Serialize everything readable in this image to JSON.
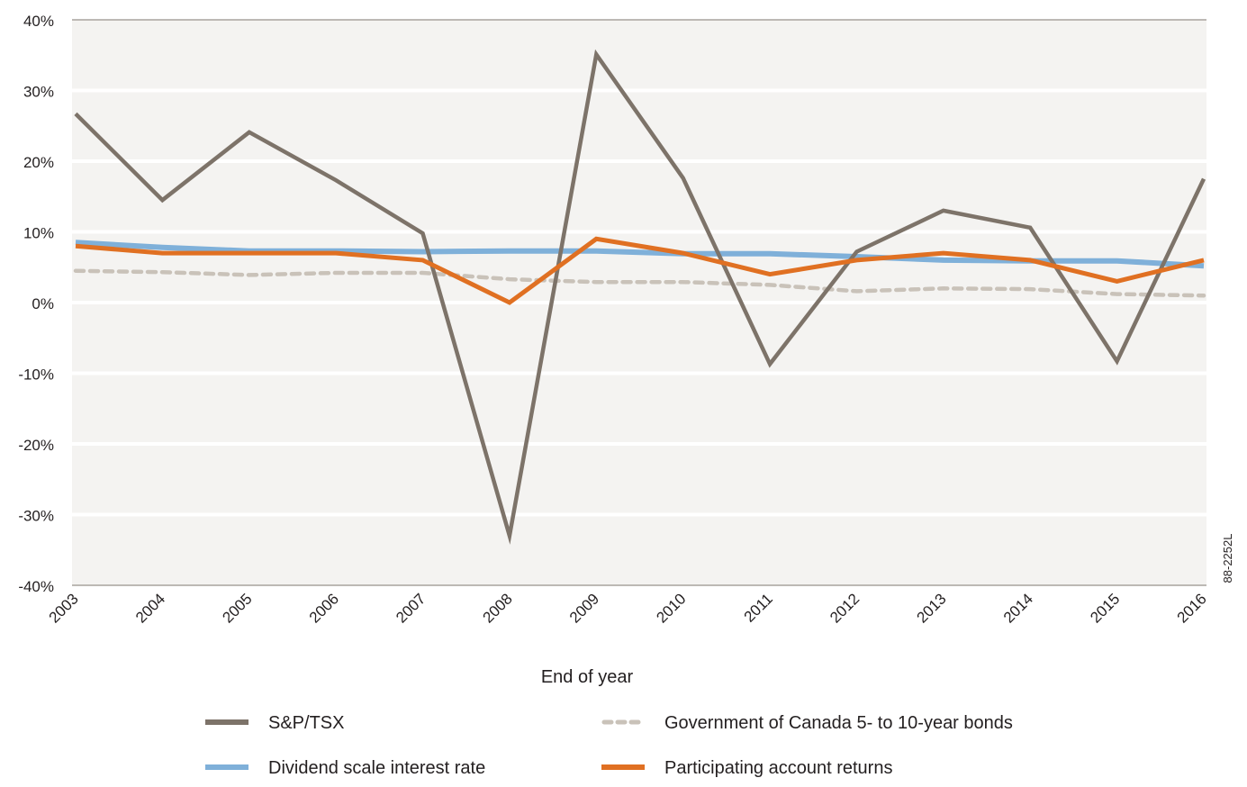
{
  "chart_data": {
    "type": "line",
    "title": "",
    "xlabel": "End of year",
    "ylabel": "",
    "x": [
      "2003",
      "2004",
      "2005",
      "2006",
      "2007",
      "2008",
      "2009",
      "2010",
      "2011",
      "2012",
      "2013",
      "2014",
      "2015",
      "2016"
    ],
    "ylim": [
      -40,
      40
    ],
    "y_ticks": [
      -40,
      -30,
      -20,
      -10,
      0,
      10,
      20,
      30,
      40
    ],
    "y_tick_labels": [
      "-40%",
      "-30%",
      "-20%",
      "-10%",
      "0%",
      "10%",
      "20%",
      "30%",
      "40%"
    ],
    "grid": true,
    "legend_position": "bottom",
    "series": [
      {
        "name": "S&P/TSX",
        "color": "#7d7369",
        "style": "solid",
        "values": [
          26.7,
          14.5,
          24.1,
          17.3,
          9.8,
          -33.0,
          35.1,
          17.6,
          -8.7,
          7.2,
          13.0,
          10.6,
          -8.3,
          17.5
        ]
      },
      {
        "name": "Government of Canada 5- to 10-year bonds",
        "color": "#c9c2b9",
        "style": "dashed",
        "values": [
          4.5,
          4.3,
          3.9,
          4.2,
          4.2,
          3.3,
          2.9,
          2.9,
          2.5,
          1.6,
          2.0,
          1.9,
          1.2,
          1.0
        ]
      },
      {
        "name": "Dividend scale interest rate",
        "color": "#7fb0d9",
        "style": "solid",
        "values": [
          8.5,
          7.8,
          7.3,
          7.3,
          7.2,
          7.3,
          7.3,
          6.9,
          6.9,
          6.5,
          6.0,
          5.9,
          5.9,
          5.2
        ]
      },
      {
        "name": "Participating account returns",
        "color": "#e07022",
        "style": "solid",
        "values": [
          8.0,
          7.0,
          7.0,
          7.0,
          6.0,
          0.0,
          9.0,
          7.0,
          4.0,
          6.0,
          7.0,
          6.0,
          3.0,
          6.0
        ]
      }
    ]
  },
  "side_code": "88-2252L"
}
